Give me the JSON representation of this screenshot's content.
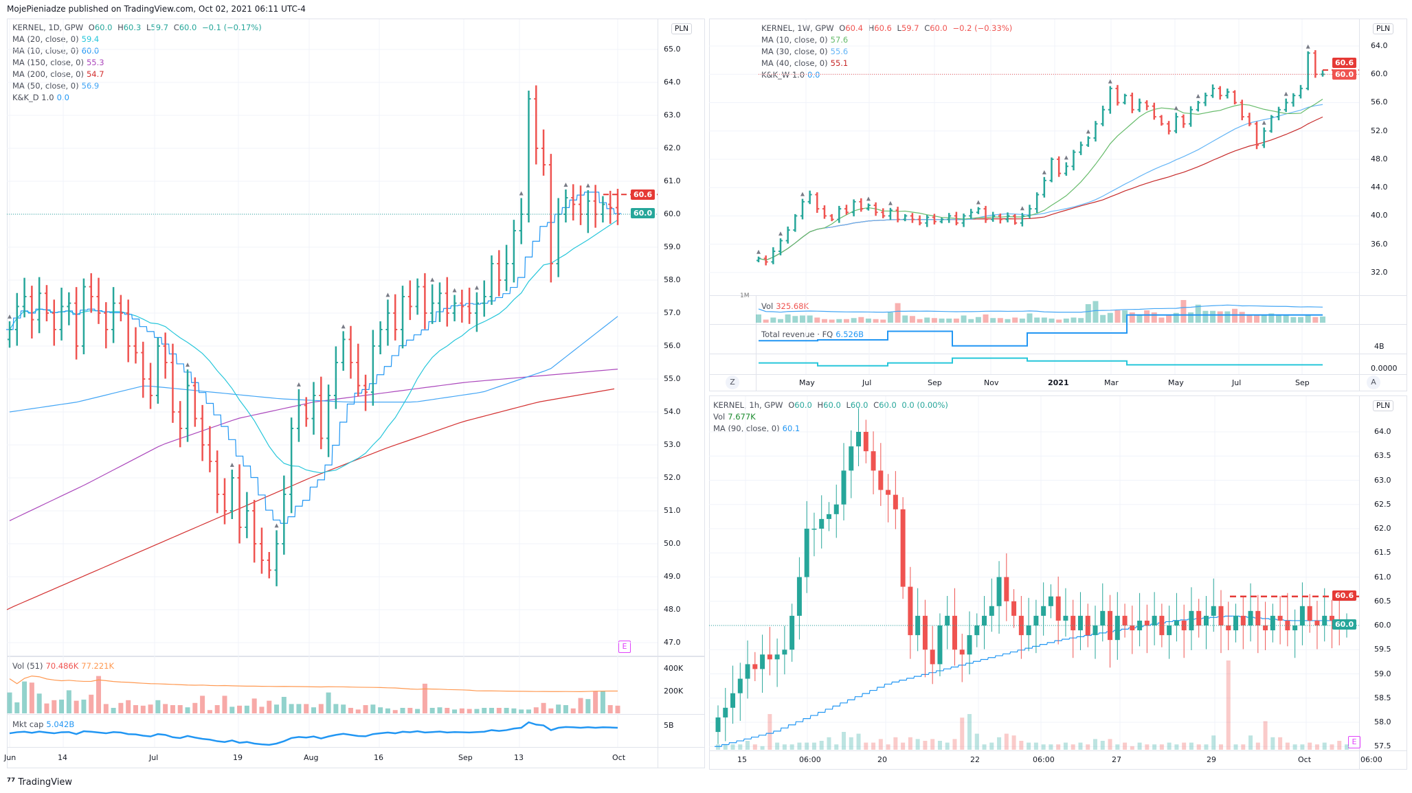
{
  "header": "MojePieniadze published on TradingView.com, Oct 02, 2021 06:11 UTC-4",
  "footer": "TradingView",
  "colors": {
    "up": "#26a69a",
    "down": "#ef5350",
    "ma20": "#26c6da",
    "ma10": "#2196f3",
    "ma150": "#ab47bc",
    "ma200": "#d32f2f",
    "ma50": "#42a5f5",
    "wma10": "#66bb6a",
    "wma30": "#64b5f6",
    "wma40": "#c62828"
  },
  "daily": {
    "title": "KERNEL, 1D, GPW",
    "o": "O",
    "ov": "60.0",
    "h": "H",
    "hv": "60.3",
    "l": "L",
    "lv": "59.7",
    "c": "C",
    "cv": "60.0",
    "chg": "−0.1 (−0.17%)",
    "mas": [
      {
        "label": "MA (20, close, 0)",
        "value": "59.4"
      },
      {
        "label": "MA (10, close, 0)",
        "value": "60.0"
      },
      {
        "label": "MA (150, close, 0)",
        "value": "55.3"
      },
      {
        "label": "MA (200, close, 0)",
        "value": "54.7"
      },
      {
        "label": "MA (50, close, 0)",
        "value": "56.9"
      },
      {
        "label": "K&K_D  1.0",
        "value": "0.0"
      }
    ],
    "currency": "PLN",
    "price_ticks": [
      "65.0",
      "64.0",
      "63.0",
      "62.0",
      "61.0",
      "60.0",
      "59.0",
      "58.0",
      "57.0",
      "56.0",
      "55.0",
      "54.0",
      "53.0",
      "52.0",
      "51.0",
      "50.0",
      "49.0",
      "48.0",
      "47.0"
    ],
    "tag_high": "60.6",
    "tag_last": "60.0",
    "vol_label": "Vol (51)",
    "vol_v1": "70.486K",
    "vol_v2": "77.221K",
    "vol_ticks": [
      "400K",
      "200K"
    ],
    "mcap_label": "Mkt cap",
    "mcap_value": "5.042B",
    "mcap_tick": "5B",
    "time_labels": [
      "Jun",
      "14",
      "Jul",
      "19",
      "Aug",
      "16",
      "Sep",
      "13",
      "Oct"
    ],
    "earnings_badge": "E",
    "closes": [
      56.5,
      57.2,
      57.5,
      56.8,
      57.6,
      57.0,
      56.5,
      57.2,
      57.3,
      56.0,
      57.8,
      57.5,
      57.0,
      56.5,
      57.3,
      57.0,
      56.0,
      55.8,
      55.0,
      54.5,
      56.0,
      55.5,
      54.0,
      53.5,
      54.8,
      53.8,
      53.0,
      52.5,
      51.5,
      51.0,
      52.0,
      50.5,
      51.0,
      50.0,
      49.5,
      49.2,
      50.0,
      51.5,
      53.5,
      54.2,
      53.8,
      54.5,
      53.2,
      54.5,
      55.5,
      56.2,
      55.5,
      54.8,
      54.6,
      56.0,
      56.5,
      57.0,
      56.5,
      57.5,
      57.2,
      57.8,
      57.0,
      57.3,
      57.6,
      57.0,
      57.3,
      57.2,
      57.0,
      57.3,
      57.5,
      58.5,
      58.0,
      58.5,
      59.5,
      60.0,
      63.5,
      62.0,
      61.5,
      58.5,
      60.0,
      60.5,
      60.3,
      60.0,
      60.4,
      60.0,
      60.3,
      60.2,
      60.0
    ],
    "volume_k": [
      190,
      100,
      290,
      280,
      180,
      90,
      120,
      125,
      210,
      115,
      125,
      170,
      340,
      85,
      50,
      95,
      120,
      75,
      70,
      80,
      120,
      85,
      75,
      75,
      55,
      95,
      160,
      30,
      75,
      160,
      60,
      70,
      70,
      135,
      60,
      115,
      80,
      150,
      85,
      85,
      85,
      55,
      85,
      190,
      85,
      80,
      50,
      35,
      75,
      80,
      55,
      45,
      30,
      50,
      50,
      40,
      270,
      50,
      55,
      50,
      35,
      45,
      40,
      40,
      50,
      50,
      50,
      50,
      45,
      35,
      35,
      55,
      95,
      45,
      80,
      75,
      45,
      140,
      130,
      200,
      205,
      75,
      70,
      75,
      460,
      90,
      75,
      35,
      145,
      35,
      80
    ],
    "ma150": [
      50.7,
      51.8,
      53.0,
      53.8,
      54.3,
      54.6,
      54.9,
      55.1,
      55.3
    ],
    "ma200": [
      48.0,
      49.0,
      50.0,
      51.0,
      52.0,
      52.9,
      53.7,
      54.3,
      54.7
    ],
    "ma50": [
      54.0,
      54.3,
      54.8,
      54.6,
      54.4,
      54.3,
      54.3,
      54.6,
      55.3,
      56.9
    ]
  },
  "weekly": {
    "title": "KERNEL, 1W, GPW",
    "o": "O",
    "ov": "60.4",
    "h": "H",
    "hv": "60.6",
    "l": "L",
    "lv": "59.7",
    "c": "C",
    "cv": "60.0",
    "chg": "−0.2 (−0.33%)",
    "mas": [
      {
        "label": "MA (10, close, 0)",
        "value": "57.6"
      },
      {
        "label": "MA (30, close, 0)",
        "value": "55.6"
      },
      {
        "label": "MA (40, close, 0)",
        "value": "55.1"
      },
      {
        "label": "K&K_W  1.0",
        "value": "0.0"
      }
    ],
    "currency": "PLN",
    "price_ticks": [
      "64.0",
      "60.0",
      "56.0",
      "52.0",
      "48.0",
      "44.0",
      "40.0",
      "36.0",
      "32.0"
    ],
    "tag_high": "60.6",
    "tag_last": "60.0",
    "vol_label": "Vol",
    "vol_value": "325.68K",
    "vol_tick": "1M",
    "rev_label": "Total revenue · FQ",
    "rev_value": "6.526B",
    "rev_tick": "4B",
    "third_tick": "0.0000",
    "time_labels": [
      "May",
      "Jul",
      "Sep",
      "Nov",
      "2021",
      "Mar",
      "May",
      "Jul",
      "Sep"
    ],
    "z_button": "Z",
    "a_button": "A",
    "closes": [
      34,
      33.5,
      35,
      36.5,
      38,
      40,
      42,
      43,
      41,
      40,
      39.5,
      41,
      40.5,
      42,
      41,
      41.5,
      40.5,
      40,
      40.8,
      39.5,
      40,
      39.5,
      39,
      39.8,
      39.2,
      39.5,
      40,
      39,
      40,
      40.5,
      41,
      39.5,
      40,
      39.5,
      40,
      39,
      40,
      41,
      43,
      45,
      48,
      46,
      47,
      49,
      50,
      51,
      53,
      55,
      58,
      56,
      57,
      55,
      56,
      55.5,
      54,
      53,
      52,
      54,
      53,
      55,
      56,
      57,
      58,
      57,
      57.5,
      56,
      54,
      53,
      50,
      52,
      54,
      55,
      56,
      57,
      58,
      63,
      60,
      60
    ],
    "volume_k": [
      160,
      60,
      100,
      70,
      160,
      130,
      140,
      140,
      100,
      70,
      60,
      70,
      70,
      90,
      110,
      80,
      70,
      60,
      200,
      380,
      140,
      130,
      70,
      100,
      90,
      80,
      80,
      80,
      140,
      70,
      110,
      160,
      90,
      90,
      70,
      100,
      80,
      180,
      100,
      100,
      80,
      60,
      80,
      100,
      90,
      360,
      420,
      150,
      190,
      240,
      240,
      200,
      140,
      240,
      200,
      100,
      150,
      190,
      440,
      200,
      350,
      230,
      230,
      220,
      220,
      270,
      210,
      160,
      150,
      160,
      180,
      160,
      140,
      110,
      110,
      150,
      110,
      120,
      140,
      120,
      110,
      130,
      230,
      140,
      120,
      240,
      100
    ],
    "revenue_b": [
      3.5,
      3.6,
      4.6,
      2.9,
      4.4,
      6.5
    ],
    "third_series": [
      0.6,
      0.3,
      0.6,
      1.1,
      0.8,
      0.4
    ]
  },
  "hourly": {
    "title": "KERNEL, 1h, GPW",
    "o": "O",
    "ov": "60.0",
    "h": "H",
    "hv": "60.0",
    "l": "L",
    "lv": "60.0",
    "c": "C",
    "cv": "60.0",
    "chg": "0.0 (0.00%)",
    "vol_label": "Vol",
    "vol_value": "7.677K",
    "ma_label": "MA (90, close, 0)",
    "ma_value": "60.1",
    "currency": "PLN",
    "price_ticks": [
      "64.0",
      "63.5",
      "63.0",
      "62.5",
      "62.0",
      "61.5",
      "61.0",
      "60.5",
      "60.0",
      "59.5",
      "59.0",
      "58.5",
      "58.0",
      "57.5"
    ],
    "tag_high": "60.6",
    "tag_last": "60.0",
    "time_labels": [
      "15",
      "06:00",
      "20",
      "22",
      "06:00",
      "27",
      "29",
      "Oct",
      "06:00"
    ],
    "earnings_badge": "E",
    "closes": [
      58.1,
      58.3,
      58.6,
      58.9,
      59.2,
      59.1,
      59.4,
      59.3,
      59.4,
      59.5,
      60.2,
      61.0,
      62.0,
      62.0,
      62.2,
      62.3,
      62.5,
      63.2,
      63.7,
      64.0,
      63.6,
      63.2,
      62.8,
      62.7,
      62.4,
      60.8,
      59.8,
      60.2,
      59.5,
      59.2,
      60.0,
      60.2,
      59.5,
      59.4,
      59.8,
      60.0,
      60.2,
      60.4,
      61.0,
      60.5,
      60.2,
      59.8,
      60.0,
      60.2,
      60.4,
      60.6,
      60.1,
      60.2,
      59.9,
      60.2,
      59.8,
      60.0,
      60.3,
      59.7,
      60.2,
      60.0,
      59.9,
      60.1,
      60.0,
      60.2,
      59.8,
      60.0,
      60.1,
      59.9,
      60.3,
      60.0,
      60.2,
      60.4,
      60.0,
      59.9,
      60.2,
      60.0,
      60.3,
      60.0,
      59.9,
      60.2,
      60.1,
      59.9,
      60.0,
      60.4,
      60.1,
      60.0,
      60.2,
      60.1,
      60.0,
      60.0
    ],
    "ma": [
      57.5,
      57.8,
      58.3,
      58.8,
      59.1,
      59.4,
      59.7,
      59.9,
      60.1,
      60.2,
      60.1,
      60.1
    ],
    "volume_k": [
      3,
      3,
      3,
      3,
      5,
      3,
      2,
      20,
      4,
      3,
      3,
      4,
      4,
      4,
      5,
      7,
      3,
      10,
      7,
      9,
      4,
      4,
      6,
      3,
      7,
      4,
      7,
      6,
      5,
      6,
      5,
      4,
      6,
      18,
      20,
      9,
      3,
      4,
      7,
      9,
      8,
      5,
      4,
      4,
      3,
      3,
      3,
      4,
      3,
      4,
      3,
      6,
      5,
      6,
      3,
      4,
      2,
      4,
      3,
      3,
      3,
      4,
      3,
      4,
      4,
      3,
      3,
      8,
      3,
      50,
      3,
      3,
      8,
      4,
      16,
      7,
      7,
      4,
      3,
      3,
      4,
      3,
      4,
      3,
      5,
      3,
      4,
      3,
      3,
      3,
      4,
      5,
      3,
      6,
      5,
      3
    ]
  }
}
